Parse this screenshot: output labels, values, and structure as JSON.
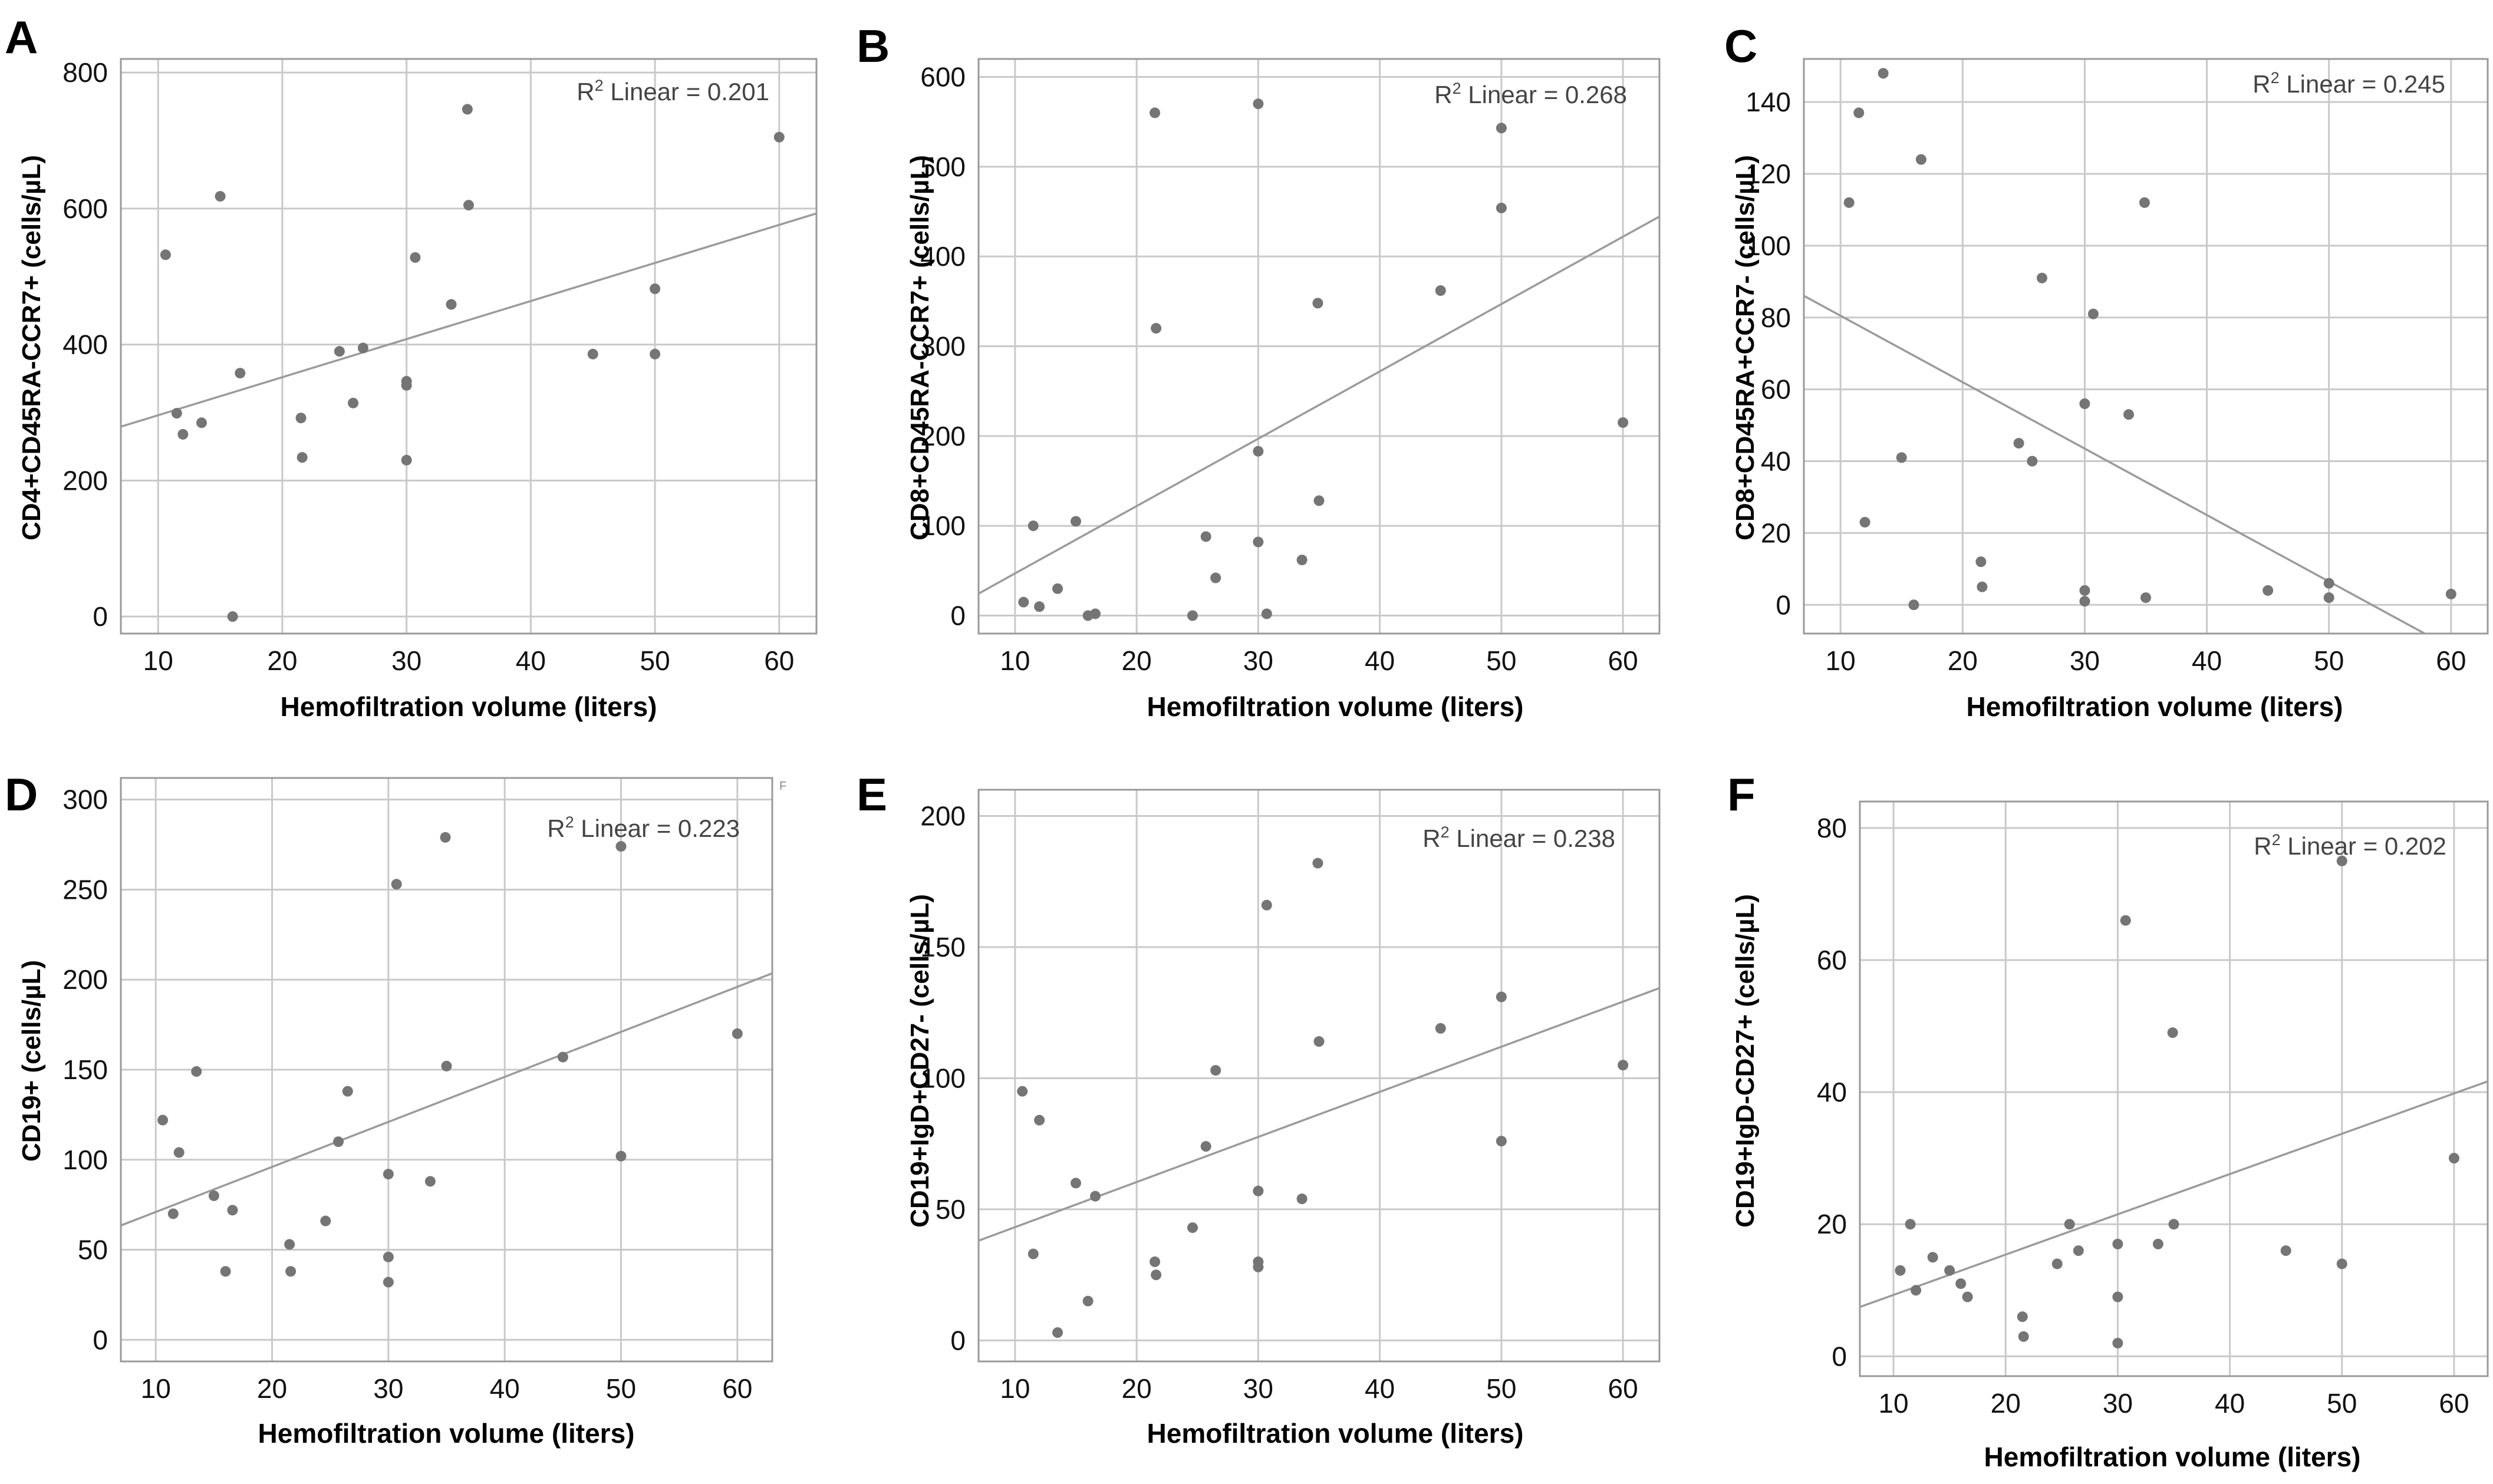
{
  "figure": {
    "mark": "F",
    "panels": [
      {
        "letter": "A",
        "chart_data": {
          "type": "scatter",
          "xlabel": "Hemofiltration volume (liters)",
          "ylabel": "CD4+CD45RA-CCR7+ (cells/µL)",
          "annotation": "Linear = 0.201",
          "r2": 0.201,
          "xlim": [
            7,
            63
          ],
          "ylim": [
            -25,
            820
          ],
          "xticks": [
            10,
            20,
            30,
            40,
            50,
            60
          ],
          "yticks": [
            0,
            200,
            400,
            600,
            800
          ],
          "fit": {
            "slope": 5.6,
            "intercept": 240
          },
          "points": [
            [
              10.6,
              532
            ],
            [
              11.5,
              299
            ],
            [
              12,
              268
            ],
            [
              13.5,
              285
            ],
            [
              15,
              618
            ],
            [
              16,
              0
            ],
            [
              16.6,
              358
            ],
            [
              21.5,
              292
            ],
            [
              21.6,
              234
            ],
            [
              24.6,
              390
            ],
            [
              25.7,
              314
            ],
            [
              26.5,
              395
            ],
            [
              30,
              346
            ],
            [
              30,
              340
            ],
            [
              30,
              230
            ],
            [
              30.7,
              528
            ],
            [
              33.6,
              459
            ],
            [
              34.9,
              746
            ],
            [
              35,
              605
            ],
            [
              45,
              386
            ],
            [
              50,
              482
            ],
            [
              50,
              386
            ],
            [
              60,
              705
            ]
          ]
        }
      },
      {
        "letter": "B",
        "chart_data": {
          "type": "scatter",
          "xlabel": "Hemofiltration volume (liters)",
          "ylabel": "CD8+CD45RA-CCR7+ (cells/µL)",
          "annotation": "Linear = 0.268",
          "r2": 0.268,
          "xlim": [
            7,
            63
          ],
          "ylim": [
            -20,
            620
          ],
          "xticks": [
            10,
            20,
            30,
            40,
            50,
            60
          ],
          "yticks": [
            0,
            100,
            200,
            300,
            400,
            500,
            600
          ],
          "fit": {
            "slope": 7.5,
            "intercept": -28
          },
          "points": [
            [
              10.7,
              15
            ],
            [
              11.5,
              100
            ],
            [
              12,
              10
            ],
            [
              13.5,
              30
            ],
            [
              15,
              105
            ],
            [
              16,
              0
            ],
            [
              16.6,
              2
            ],
            [
              21.5,
              560
            ],
            [
              21.6,
              320
            ],
            [
              24.6,
              0
            ],
            [
              25.7,
              88
            ],
            [
              26.5,
              42
            ],
            [
              30,
              570
            ],
            [
              30,
              183
            ],
            [
              30,
              82
            ],
            [
              30.7,
              2
            ],
            [
              33.6,
              62
            ],
            [
              34.9,
              348
            ],
            [
              35,
              128
            ],
            [
              45,
              362
            ],
            [
              50,
              543
            ],
            [
              50,
              454
            ],
            [
              60,
              215
            ]
          ]
        }
      },
      {
        "letter": "C",
        "chart_data": {
          "type": "scatter",
          "xlabel": "Hemofiltration volume (liters)",
          "ylabel": "CD8+CD45RA+CCR7- (cells/µL)",
          "annotation": "Linear = 0.245",
          "r2": 0.245,
          "xlim": [
            7,
            63
          ],
          "ylim": [
            -8,
            152
          ],
          "xticks": [
            10,
            20,
            30,
            40,
            50,
            60
          ],
          "yticks": [
            0,
            20,
            40,
            60,
            80,
            100,
            120,
            140
          ],
          "fit": {
            "slope": -1.85,
            "intercept": 99
          },
          "points": [
            [
              10.7,
              112
            ],
            [
              11.5,
              137
            ],
            [
              12,
              23
            ],
            [
              13.5,
              148
            ],
            [
              15,
              41
            ],
            [
              16,
              0
            ],
            [
              16.6,
              124
            ],
            [
              21.5,
              12
            ],
            [
              21.6,
              5
            ],
            [
              24.6,
              45
            ],
            [
              25.7,
              40
            ],
            [
              26.5,
              91
            ],
            [
              30,
              56
            ],
            [
              30,
              4
            ],
            [
              30,
              1
            ],
            [
              30.7,
              81
            ],
            [
              33.6,
              53
            ],
            [
              34.9,
              112
            ],
            [
              35,
              2
            ],
            [
              45,
              4
            ],
            [
              50,
              6
            ],
            [
              50,
              2
            ],
            [
              60,
              3
            ]
          ]
        }
      },
      {
        "letter": "D",
        "chart_data": {
          "type": "scatter",
          "xlabel": "Hemofiltration volume (liters)",
          "ylabel": "CD19+ (cells/µL)",
          "annotation": "Linear = 0.223",
          "r2": 0.223,
          "xlim": [
            7,
            63
          ],
          "ylim": [
            -12,
            312
          ],
          "xticks": [
            10,
            20,
            30,
            40,
            50,
            60
          ],
          "yticks": [
            0,
            50,
            100,
            150,
            200,
            250,
            300
          ],
          "fit": {
            "slope": 2.5,
            "intercept": 46
          },
          "points": [
            [
              10.6,
              122
            ],
            [
              11.5,
              70
            ],
            [
              12,
              104
            ],
            [
              13.5,
              149
            ],
            [
              15,
              80
            ],
            [
              16,
              38
            ],
            [
              16.6,
              72
            ],
            [
              21.5,
              53
            ],
            [
              21.6,
              38
            ],
            [
              24.6,
              66
            ],
            [
              25.7,
              110
            ],
            [
              26.5,
              138
            ],
            [
              30,
              92
            ],
            [
              30,
              46
            ],
            [
              30,
              32
            ],
            [
              30.7,
              253
            ],
            [
              33.6,
              88
            ],
            [
              34.9,
              279
            ],
            [
              35,
              152
            ],
            [
              45,
              157
            ],
            [
              50,
              274
            ],
            [
              50,
              102
            ],
            [
              60,
              170
            ]
          ]
        }
      },
      {
        "letter": "E",
        "chart_data": {
          "type": "scatter",
          "xlabel": "Hemofiltration volume (liters)",
          "ylabel": "CD19+IgD+CD27- (cells/µL)",
          "annotation": "Linear = 0.238",
          "r2": 0.238,
          "xlim": [
            7,
            63
          ],
          "ylim": [
            -8,
            210
          ],
          "xticks": [
            10,
            20,
            30,
            40,
            50,
            60
          ],
          "yticks": [
            0,
            50,
            100,
            150,
            200
          ],
          "fit": {
            "slope": 1.72,
            "intercept": 26
          },
          "points": [
            [
              10.6,
              95
            ],
            [
              11.5,
              33
            ],
            [
              12,
              84
            ],
            [
              13.5,
              3
            ],
            [
              15,
              60
            ],
            [
              16,
              15
            ],
            [
              16.6,
              55
            ],
            [
              21.5,
              30
            ],
            [
              21.6,
              25
            ],
            [
              24.6,
              43
            ],
            [
              25.7,
              74
            ],
            [
              26.5,
              103
            ],
            [
              30,
              57
            ],
            [
              30,
              30
            ],
            [
              30,
              28
            ],
            [
              30.7,
              166
            ],
            [
              33.6,
              54
            ],
            [
              34.9,
              182
            ],
            [
              35,
              114
            ],
            [
              45,
              119
            ],
            [
              50,
              131
            ],
            [
              50,
              76
            ],
            [
              60,
              105
            ]
          ]
        }
      },
      {
        "letter": "F",
        "chart_data": {
          "type": "scatter",
          "xlabel": "Hemofiltration volume (liters)",
          "ylabel": "CD19+IgD-CD27+ (cells/µL)",
          "annotation": "Linear = 0.202",
          "r2": 0.202,
          "xlim": [
            7,
            63
          ],
          "ylim": [
            -3,
            84
          ],
          "xticks": [
            10,
            20,
            30,
            40,
            50,
            60
          ],
          "yticks": [
            0,
            20,
            40,
            60,
            80
          ],
          "fit": {
            "slope": 0.61,
            "intercept": 3.2
          },
          "points": [
            [
              10.6,
              13
            ],
            [
              11.5,
              20
            ],
            [
              12,
              10
            ],
            [
              13.5,
              15
            ],
            [
              15,
              13
            ],
            [
              16,
              11
            ],
            [
              16.6,
              9
            ],
            [
              21.5,
              6
            ],
            [
              21.6,
              3
            ],
            [
              24.6,
              14
            ],
            [
              25.7,
              20
            ],
            [
              26.5,
              16
            ],
            [
              30,
              17
            ],
            [
              30,
              9
            ],
            [
              30,
              2
            ],
            [
              30.7,
              66
            ],
            [
              33.6,
              17
            ],
            [
              34.9,
              49
            ],
            [
              35,
              20
            ],
            [
              45,
              16
            ],
            [
              50,
              75
            ],
            [
              50,
              14
            ],
            [
              60,
              30
            ]
          ]
        }
      }
    ]
  }
}
